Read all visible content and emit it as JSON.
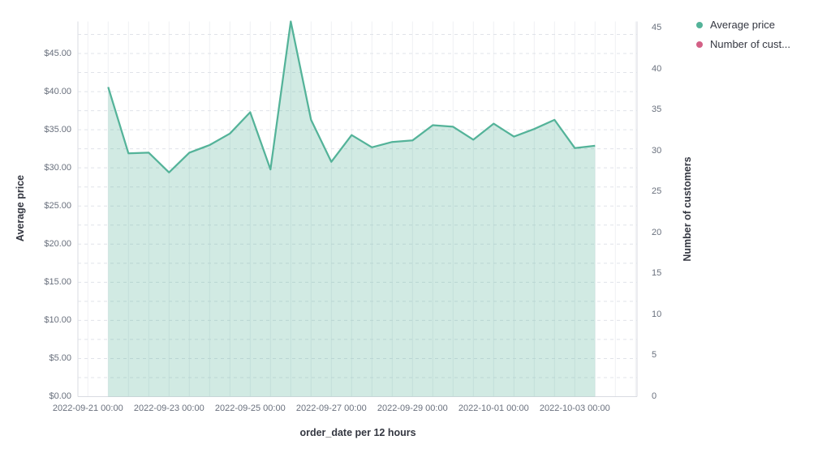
{
  "chart_data": {
    "type": "area",
    "title": "",
    "xlabel": "order_date per 12 hours",
    "ylabel_left": "Average price",
    "ylabel_right": "Number of customers",
    "x": [
      "2022-09-21 12:00",
      "2022-09-22 00:00",
      "2022-09-22 12:00",
      "2022-09-23 00:00",
      "2022-09-23 12:00",
      "2022-09-24 00:00",
      "2022-09-24 12:00",
      "2022-09-25 00:00",
      "2022-09-25 12:00",
      "2022-09-26 00:00",
      "2022-09-26 12:00",
      "2022-09-27 00:00",
      "2022-09-27 12:00",
      "2022-09-28 00:00",
      "2022-09-28 12:00",
      "2022-09-29 00:00",
      "2022-09-29 12:00",
      "2022-09-30 00:00",
      "2022-09-30 12:00",
      "2022-10-01 00:00",
      "2022-10-01 12:00",
      "2022-10-02 00:00",
      "2022-10-02 12:00",
      "2022-10-03 00:00",
      "2022-10-03 12:00"
    ],
    "series": [
      {
        "name": "Average price",
        "axis": "left",
        "color": "#54B399",
        "values": [
          40.6,
          31.9,
          32.0,
          29.4,
          32.0,
          33.0,
          34.5,
          37.3,
          29.8,
          49.2,
          36.3,
          30.8,
          34.3,
          32.7,
          33.4,
          33.6,
          35.6,
          35.4,
          33.7,
          35.8,
          34.1,
          35.1,
          36.3,
          32.6,
          32.9
        ]
      },
      {
        "name": "Number of customers",
        "axis": "right",
        "color": "#D36086",
        "values": []
      }
    ],
    "left_axis": {
      "tick_labels": [
        "$0.00",
        "$5.00",
        "$10.00",
        "$15.00",
        "$20.00",
        "$25.00",
        "$30.00",
        "$35.00",
        "$40.00",
        "$45.00"
      ],
      "tick_values": [
        0,
        5,
        10,
        15,
        20,
        25,
        30,
        35,
        40,
        45
      ],
      "range": [
        0,
        49.2
      ],
      "minor_step": 2.5
    },
    "right_axis": {
      "tick_labels": [
        "0",
        "5",
        "10",
        "15",
        "20",
        "25",
        "30",
        "35",
        "40",
        "45"
      ],
      "tick_values": [
        0,
        5,
        10,
        15,
        20,
        25,
        30,
        35,
        40,
        45
      ],
      "range": [
        0,
        45.8
      ]
    },
    "x_tick_labels": [
      "2022-09-21 00:00",
      "2022-09-23 00:00",
      "2022-09-25 00:00",
      "2022-09-27 00:00",
      "2022-09-29 00:00",
      "2022-10-01 00:00",
      "2022-10-03 00:00"
    ],
    "legend": {
      "position": "top-right",
      "items": [
        {
          "label": "Average price",
          "color": "#54B399"
        },
        {
          "label": "Number of cust...",
          "color": "#D36086"
        }
      ]
    },
    "grid": {
      "horizontal_style": "dashed",
      "vertical_style": "solid",
      "horizontal_color": "#E0E3E9",
      "vertical_color": "#EEF0F3",
      "axis_line_color": "#D8DBE1"
    }
  }
}
